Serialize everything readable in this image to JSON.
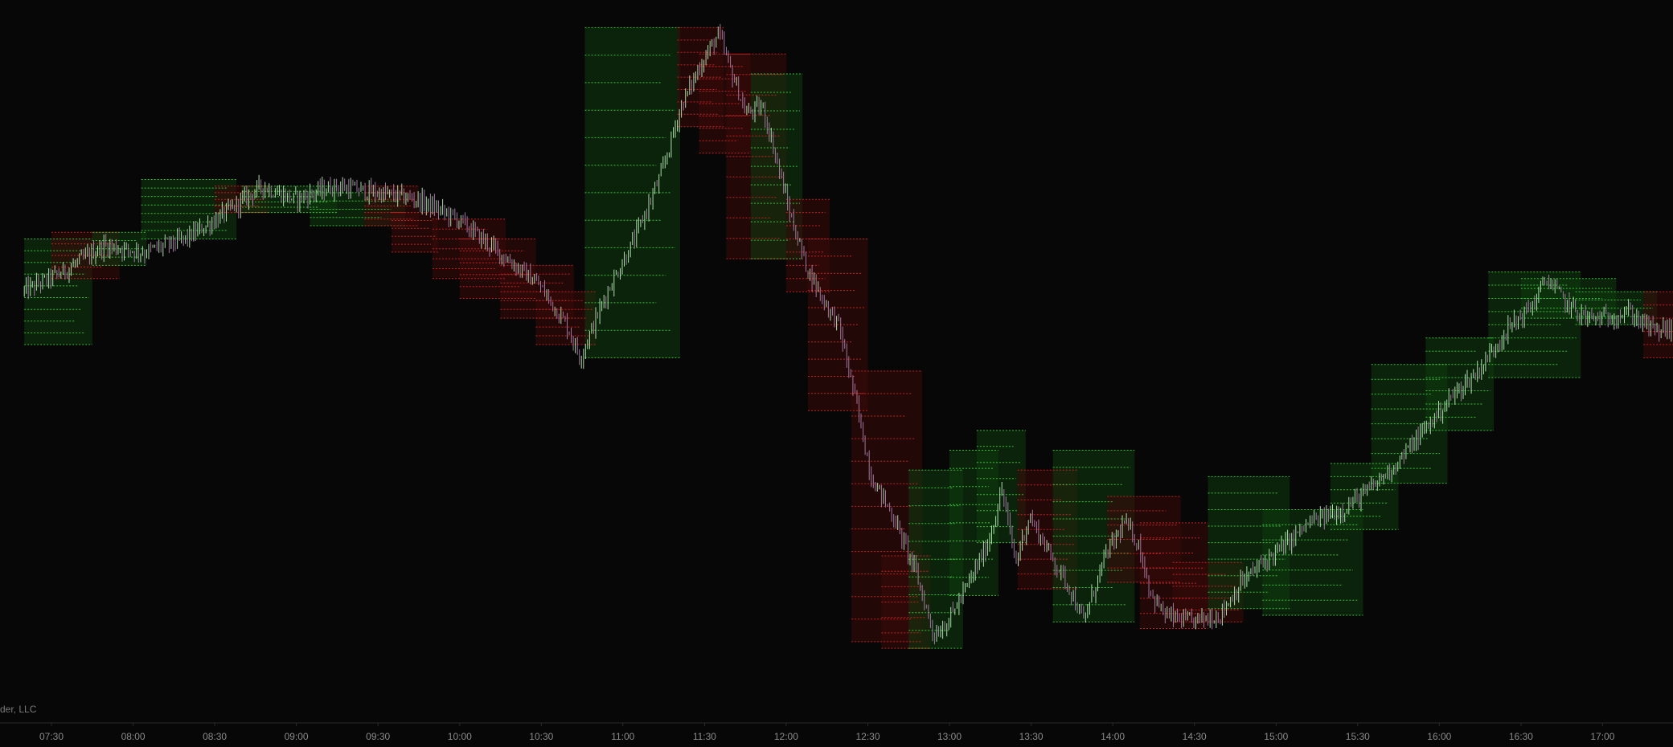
{
  "watermark": "der, LLC",
  "colors": {
    "background": "#070707",
    "axis_line": "#2a2a2a",
    "axis_text": "#8a8a8a",
    "bull_fill": "#0f3a0f",
    "bear_fill": "#3a0a0a",
    "bull_level": "#3fcf3f",
    "bear_level": "#d02525",
    "wick_bull": "#c8ffc8",
    "wick_bear": "#b78ab8",
    "candle_bull": "#7fe07f",
    "candle_bear": "#a05aa8"
  },
  "chart_data": {
    "type": "candlestick",
    "x_axis": {
      "tick_labels": [
        "07:30",
        "08:00",
        "08:30",
        "09:00",
        "09:30",
        "10:00",
        "10:30",
        "11:00",
        "11:30",
        "12:00",
        "12:30",
        "13:00",
        "13:30",
        "14:00",
        "14:30",
        "15:00",
        "15:30",
        "16:00",
        "16:30",
        "17:00"
      ],
      "start_minutes": 440,
      "end_minutes": 1065
    },
    "y_axis": {
      "min": 0,
      "max": 100,
      "labels_shown": false
    },
    "price_path": [
      [
        440,
        58
      ],
      [
        455,
        61
      ],
      [
        470,
        65
      ],
      [
        485,
        64
      ],
      [
        500,
        66
      ],
      [
        515,
        70
      ],
      [
        528,
        74
      ],
      [
        540,
        72
      ],
      [
        555,
        74
      ],
      [
        570,
        73
      ],
      [
        585,
        72
      ],
      [
        600,
        69
      ],
      [
        615,
        64
      ],
      [
        630,
        59
      ],
      [
        640,
        53
      ],
      [
        645,
        48
      ],
      [
        655,
        58
      ],
      [
        665,
        66
      ],
      [
        675,
        76
      ],
      [
        682,
        86
      ],
      [
        690,
        93
      ],
      [
        696,
        97
      ],
      [
        700,
        92
      ],
      [
        706,
        85
      ],
      [
        712,
        86
      ],
      [
        716,
        80
      ],
      [
        722,
        70
      ],
      [
        728,
        62
      ],
      [
        734,
        57
      ],
      [
        740,
        53
      ],
      [
        746,
        42
      ],
      [
        752,
        30
      ],
      [
        760,
        24
      ],
      [
        768,
        16
      ],
      [
        775,
        6
      ],
      [
        780,
        8
      ],
      [
        788,
        14
      ],
      [
        795,
        20
      ],
      [
        800,
        28
      ],
      [
        805,
        17
      ],
      [
        810,
        24
      ],
      [
        818,
        18
      ],
      [
        825,
        13
      ],
      [
        830,
        8
      ],
      [
        838,
        18
      ],
      [
        845,
        23
      ],
      [
        850,
        20
      ],
      [
        855,
        12
      ],
      [
        860,
        9
      ],
      [
        868,
        8
      ],
      [
        880,
        9
      ],
      [
        888,
        14
      ],
      [
        896,
        17
      ],
      [
        905,
        20
      ],
      [
        913,
        23
      ],
      [
        925,
        25
      ],
      [
        935,
        28
      ],
      [
        945,
        32
      ],
      [
        955,
        37
      ],
      [
        965,
        42
      ],
      [
        975,
        46
      ],
      [
        985,
        52
      ],
      [
        995,
        56
      ],
      [
        1000,
        60
      ],
      [
        1008,
        56
      ],
      [
        1015,
        54
      ],
      [
        1022,
        54
      ],
      [
        1030,
        55
      ],
      [
        1040,
        52
      ],
      [
        1050,
        53
      ],
      [
        1055,
        52
      ],
      [
        1060,
        57
      ],
      [
        1063,
        60
      ],
      [
        1070,
        55
      ],
      [
        1078,
        51
      ],
      [
        1088,
        47
      ],
      [
        1095,
        45
      ],
      [
        1100,
        49
      ],
      [
        1110,
        48
      ],
      [
        1125,
        46
      ],
      [
        1140,
        45
      ]
    ],
    "profile_boxes": [
      {
        "t0": 440,
        "t1": 465,
        "lo": 50,
        "hi": 66,
        "kind": "bull",
        "levels": 9
      },
      {
        "t0": 450,
        "t1": 475,
        "lo": 60,
        "hi": 67,
        "kind": "bear",
        "levels": 4
      },
      {
        "t0": 465,
        "t1": 485,
        "lo": 62,
        "hi": 67,
        "kind": "bull",
        "levels": 4
      },
      {
        "t0": 483,
        "t1": 518,
        "lo": 66,
        "hi": 75,
        "kind": "bull",
        "levels": 7
      },
      {
        "t0": 510,
        "t1": 530,
        "lo": 70,
        "hi": 74,
        "kind": "bear",
        "levels": 4
      },
      {
        "t0": 520,
        "t1": 555,
        "lo": 70,
        "hi": 74,
        "kind": "bull",
        "levels": 5
      },
      {
        "t0": 545,
        "t1": 580,
        "lo": 68,
        "hi": 73,
        "kind": "bull",
        "levels": 4
      },
      {
        "t0": 565,
        "t1": 585,
        "lo": 68,
        "hi": 74,
        "kind": "bear",
        "levels": 6
      },
      {
        "t0": 575,
        "t1": 592,
        "lo": 64,
        "hi": 70,
        "kind": "bear",
        "levels": 5
      },
      {
        "t0": 590,
        "t1": 617,
        "lo": 60,
        "hi": 69,
        "kind": "bear",
        "levels": 6
      },
      {
        "t0": 600,
        "t1": 628,
        "lo": 57,
        "hi": 66,
        "kind": "bear",
        "levels": 5
      },
      {
        "t0": 615,
        "t1": 642,
        "lo": 54,
        "hi": 62,
        "kind": "bear",
        "levels": 6
      },
      {
        "t0": 628,
        "t1": 650,
        "lo": 50,
        "hi": 58,
        "kind": "bear",
        "levels": 6
      },
      {
        "t0": 646,
        "t1": 681,
        "lo": 48,
        "hi": 98,
        "kind": "bull",
        "levels": 12
      },
      {
        "t0": 680,
        "t1": 697,
        "lo": 83,
        "hi": 98,
        "kind": "bear",
        "levels": 8
      },
      {
        "t0": 688,
        "t1": 707,
        "lo": 79,
        "hi": 94,
        "kind": "bear",
        "levels": 8
      },
      {
        "t0": 698,
        "t1": 720,
        "lo": 63,
        "hi": 94,
        "kind": "bear",
        "levels": 10
      },
      {
        "t0": 707,
        "t1": 726,
        "lo": 63,
        "hi": 91,
        "kind": "bull",
        "levels": 10
      },
      {
        "t0": 720,
        "t1": 736,
        "lo": 58,
        "hi": 72,
        "kind": "bear",
        "levels": 7
      },
      {
        "t0": 728,
        "t1": 750,
        "lo": 40,
        "hi": 66,
        "kind": "bear",
        "levels": 10
      },
      {
        "t0": 744,
        "t1": 770,
        "lo": 5,
        "hi": 46,
        "kind": "bear",
        "levels": 12
      },
      {
        "t0": 755,
        "t1": 773,
        "lo": 4,
        "hi": 18,
        "kind": "bear",
        "levels": 6
      },
      {
        "t0": 765,
        "t1": 785,
        "lo": 4,
        "hi": 31,
        "kind": "bull",
        "levels": 10
      },
      {
        "t0": 780,
        "t1": 798,
        "lo": 12,
        "hi": 34,
        "kind": "bull",
        "levels": 8
      },
      {
        "t0": 790,
        "t1": 808,
        "lo": 20,
        "hi": 37,
        "kind": "bull",
        "levels": 7
      },
      {
        "t0": 805,
        "t1": 827,
        "lo": 13,
        "hi": 31,
        "kind": "bear",
        "levels": 8
      },
      {
        "t0": 818,
        "t1": 848,
        "lo": 8,
        "hi": 34,
        "kind": "bull",
        "levels": 10
      },
      {
        "t0": 838,
        "t1": 865,
        "lo": 14,
        "hi": 27,
        "kind": "bear",
        "levels": 6
      },
      {
        "t0": 850,
        "t1": 875,
        "lo": 7,
        "hi": 23,
        "kind": "bear",
        "levels": 7
      },
      {
        "t0": 862,
        "t1": 888,
        "lo": 8,
        "hi": 17,
        "kind": "bear",
        "levels": 5
      },
      {
        "t0": 875,
        "t1": 905,
        "lo": 10,
        "hi": 30,
        "kind": "bull",
        "levels": 8
      },
      {
        "t0": 895,
        "t1": 932,
        "lo": 9,
        "hi": 25,
        "kind": "bull",
        "levels": 7
      },
      {
        "t0": 920,
        "t1": 945,
        "lo": 22,
        "hi": 32,
        "kind": "bull",
        "levels": 5
      },
      {
        "t0": 935,
        "t1": 963,
        "lo": 29,
        "hi": 47,
        "kind": "bull",
        "levels": 8
      },
      {
        "t0": 955,
        "t1": 980,
        "lo": 37,
        "hi": 51,
        "kind": "bull",
        "levels": 7
      },
      {
        "t0": 978,
        "t1": 1012,
        "lo": 45,
        "hi": 61,
        "kind": "bull",
        "levels": 8
      },
      {
        "t0": 990,
        "t1": 1025,
        "lo": 54,
        "hi": 60,
        "kind": "bull",
        "levels": 4
      },
      {
        "t0": 1010,
        "t1": 1040,
        "lo": 53,
        "hi": 58,
        "kind": "bull",
        "levels": 4
      },
      {
        "t0": 1035,
        "t1": 1055,
        "lo": 48,
        "hi": 58,
        "kind": "bear",
        "levels": 5
      },
      {
        "t0": 1048,
        "t1": 1073,
        "lo": 48,
        "hi": 66,
        "kind": "bull",
        "levels": 9
      },
      {
        "t0": 1065,
        "t1": 1085,
        "lo": 50,
        "hi": 62,
        "kind": "bear",
        "levels": 7
      },
      {
        "t0": 1075,
        "t1": 1095,
        "lo": 47,
        "hi": 59,
        "kind": "bear",
        "levels": 7
      },
      {
        "t0": 1085,
        "t1": 1110,
        "lo": 40,
        "hi": 54,
        "kind": "bear",
        "levels": 7
      },
      {
        "t0": 1100,
        "t1": 1125,
        "lo": 40,
        "hi": 48,
        "kind": "bear",
        "levels": 5
      },
      {
        "t0": 1110,
        "t1": 1140,
        "lo": 41,
        "hi": 46,
        "kind": "bull",
        "levels": 4
      }
    ]
  }
}
